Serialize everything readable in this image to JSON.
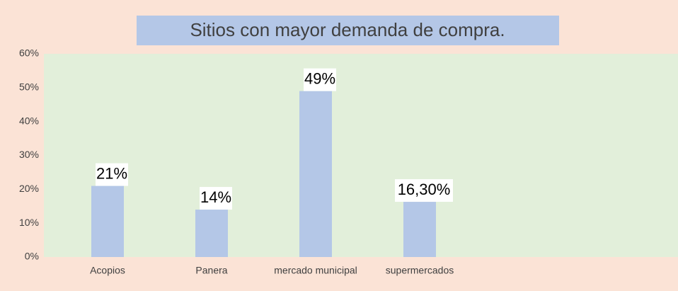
{
  "chart_data": {
    "type": "bar",
    "title": "Sitios con mayor demanda de compra.",
    "categories": [
      "Acopios",
      "Panera",
      "mercado municipal",
      "supermercados"
    ],
    "values": [
      21,
      14,
      49,
      16.3
    ],
    "value_labels": [
      "21%",
      "14%",
      "49%",
      "16,30%"
    ],
    "color": "#b4c7e7",
    "ylim": [
      0,
      60
    ],
    "yticks": [
      {
        "value": 0,
        "label": "0%"
      },
      {
        "value": 10,
        "label": "10%"
      },
      {
        "value": 20,
        "label": "20%"
      },
      {
        "value": 30,
        "label": "30%"
      },
      {
        "value": 40,
        "label": "40%"
      },
      {
        "value": 50,
        "label": "50%"
      },
      {
        "value": 60,
        "label": "60%"
      }
    ],
    "grid": false
  }
}
